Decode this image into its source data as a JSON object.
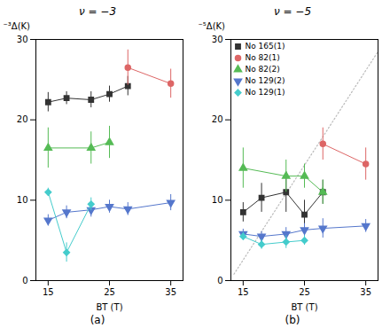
{
  "chart_data": [
    {
      "type": "line",
      "title": "ν = −3",
      "subtitle": "(a)",
      "xlabel": "BT (T)",
      "ylabel": "⁻³Δ(K)",
      "xlim": [
        13,
        37
      ],
      "xticks": [
        15,
        25,
        35
      ],
      "ylim": [
        0,
        30
      ],
      "yticks": [
        0,
        10,
        20,
        30
      ],
      "series": [
        {
          "color": "#333333",
          "marker": "square",
          "x": [
            15,
            18,
            22,
            25,
            28
          ],
          "values": [
            22.2,
            22.7,
            22.5,
            23.2,
            24.2
          ],
          "yerr": [
            1.2,
            0.8,
            1.0,
            1.0,
            1.2
          ]
        },
        {
          "color": "#dd6666",
          "marker": "circle",
          "x": [
            28,
            35
          ],
          "values": [
            26.5,
            24.5
          ],
          "yerr": [
            2.2,
            1.8
          ]
        },
        {
          "color": "#55bb55",
          "marker": "triangle-up",
          "x": [
            15,
            22,
            25
          ],
          "values": [
            16.5,
            16.5,
            17.2
          ],
          "yerr": [
            2.5,
            2.0,
            2.0
          ]
        },
        {
          "color": "#5577cc",
          "marker": "triangle-down",
          "x": [
            15,
            18,
            22,
            25,
            28,
            35
          ],
          "values": [
            7.5,
            8.5,
            8.8,
            9.2,
            8.9,
            9.7
          ],
          "yerr": [
            0.7,
            0.8,
            0.9,
            0.8,
            0.8,
            1.0
          ]
        },
        {
          "color": "#44cccc",
          "marker": "diamond",
          "x": [
            15,
            18,
            22
          ],
          "values": [
            11.0,
            3.5,
            9.5
          ],
          "yerr": [
            0.5,
            1.2,
            0.8
          ]
        }
      ]
    },
    {
      "type": "line",
      "title": "ν = −5",
      "subtitle": "(b)",
      "xlabel": "BT (T)",
      "ylabel": "⁻⁵Δ(K)",
      "xlim": [
        13,
        37
      ],
      "xticks": [
        15,
        25,
        35
      ],
      "ylim": [
        0,
        30
      ],
      "yticks": [
        0,
        10,
        20,
        30
      ],
      "legend": "upper left",
      "lines": [
        {
          "x": [
            13.5,
            37
          ],
          "values": [
            0.8,
            28.5
          ],
          "color": "#bbbbbb",
          "line_style": "dotted"
        }
      ],
      "series": [
        {
          "name": "No 165(1)",
          "color": "#333333",
          "marker": "square",
          "x": [
            15,
            18,
            22,
            25,
            28
          ],
          "values": [
            8.5,
            10.3,
            11.0,
            8.2,
            11.0
          ],
          "yerr": [
            1.2,
            1.8,
            2.5,
            1.8,
            1.5
          ]
        },
        {
          "name": "No 82(1)",
          "color": "#dd6666",
          "marker": "circle",
          "x": [
            28,
            35
          ],
          "values": [
            17.0,
            14.5
          ],
          "yerr": [
            2.0,
            2.0
          ]
        },
        {
          "name": "No 82(2)",
          "color": "#55bb55",
          "marker": "triangle-up",
          "x": [
            15,
            22,
            25,
            28
          ],
          "values": [
            14.0,
            13.0,
            13.0,
            11.0
          ],
          "yerr": [
            2.5,
            2.0,
            1.5,
            1.5
          ]
        },
        {
          "name": "No 129(2)",
          "color": "#5577cc",
          "marker": "triangle-down",
          "x": [
            15,
            18,
            22,
            25,
            28,
            35
          ],
          "values": [
            5.8,
            5.5,
            5.8,
            6.3,
            6.5,
            6.8
          ],
          "yerr": [
            0.6,
            0.6,
            0.8,
            0.8,
            1.2,
            0.8
          ]
        },
        {
          "name": "No 129(1)",
          "color": "#44cccc",
          "marker": "diamond",
          "x": [
            15,
            18,
            22,
            25
          ],
          "values": [
            5.5,
            4.5,
            4.8,
            5.0
          ],
          "yerr": [
            0.5,
            0.6,
            0.8,
            0.6
          ]
        }
      ]
    }
  ]
}
